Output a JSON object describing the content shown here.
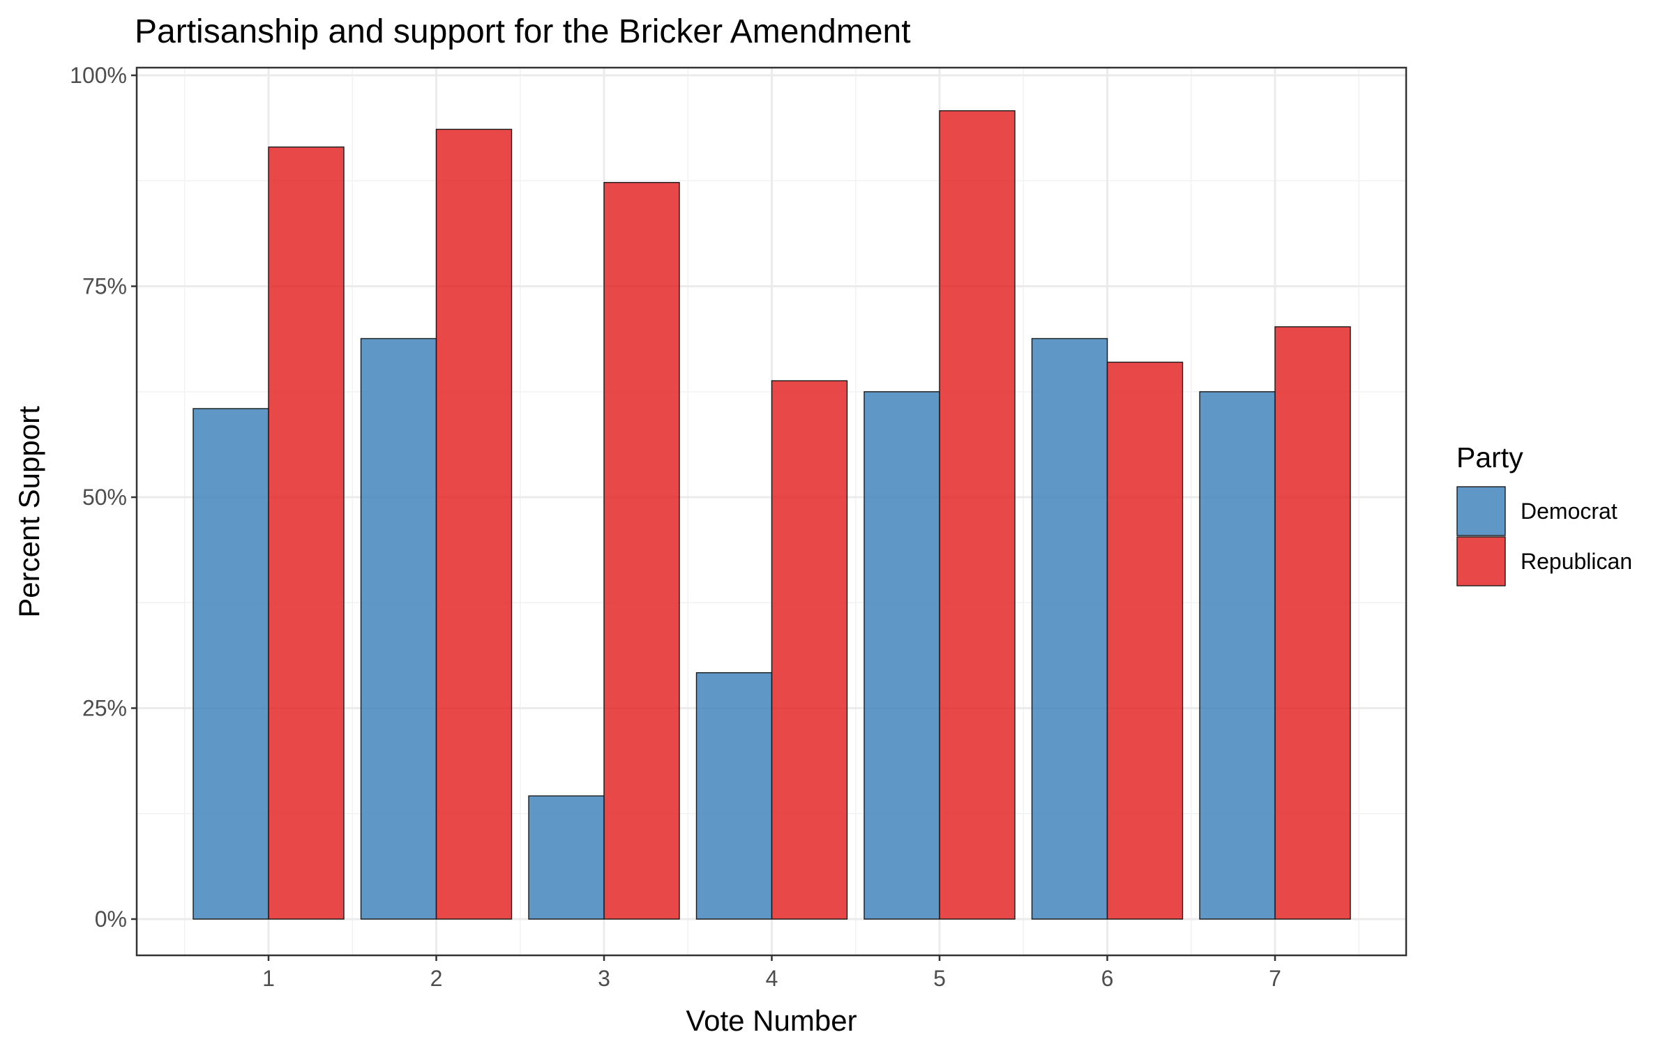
{
  "chart_data": {
    "type": "bar",
    "title": "Partisanship and support for the Bricker Amendment",
    "xlabel": "Vote Number",
    "ylabel": "Percent Support",
    "categories": [
      "1",
      "2",
      "3",
      "4",
      "5",
      "6",
      "7"
    ],
    "series": [
      {
        "name": "Democrat",
        "color": "#377eb8",
        "values": [
          60.5,
          68.8,
          14.6,
          29.2,
          62.5,
          68.8,
          62.5
        ]
      },
      {
        "name": "Republican",
        "color": "#e41a1c",
        "values": [
          91.5,
          93.6,
          87.3,
          63.8,
          95.8,
          66.0,
          70.2
        ]
      }
    ],
    "ylim": [
      0,
      100
    ],
    "yticks": [
      0,
      25,
      50,
      75,
      100
    ],
    "ytick_labels": [
      "0%",
      "25%",
      "50%",
      "75%",
      "100%"
    ],
    "grid": true,
    "legend": {
      "title": "Party",
      "placement": "right"
    }
  }
}
